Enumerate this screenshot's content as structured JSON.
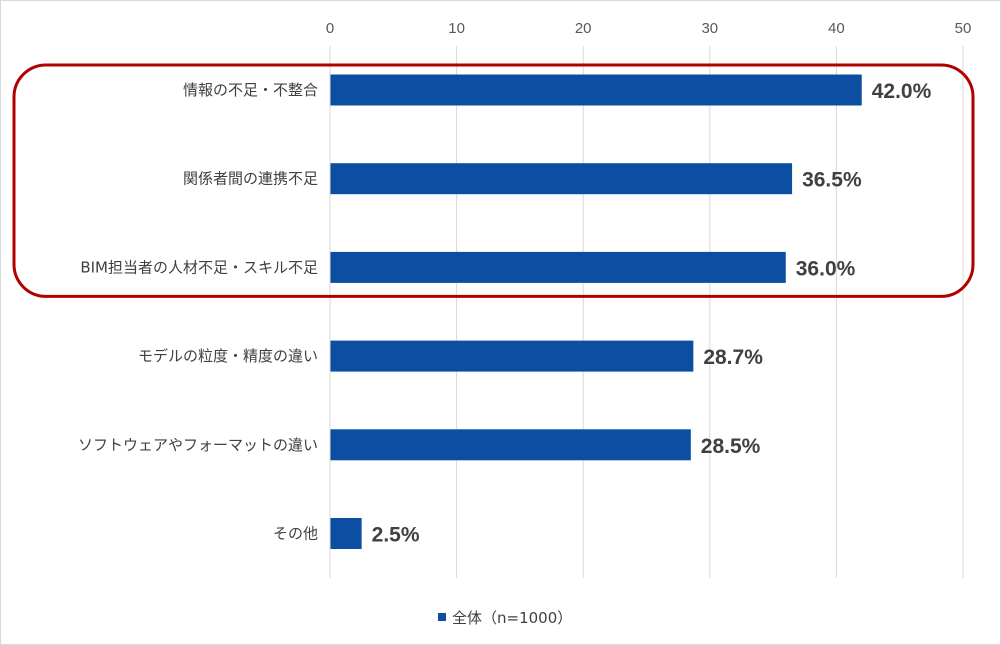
{
  "chart_data": {
    "type": "bar",
    "orientation": "horizontal",
    "title": "",
    "xlabel": "",
    "ylabel": "",
    "xlim": [
      0,
      50
    ],
    "x_ticks": [
      "0",
      "10",
      "20",
      "30",
      "40",
      "50"
    ],
    "x_tick_values": [
      0,
      10,
      20,
      30,
      40,
      50
    ],
    "x_axis_position": "top",
    "grid": true,
    "categories": [
      "情報の不足・不整合",
      "関係者間の連携不足",
      "BIM担当者の人材不足・スキル不足",
      "モデルの粒度・精度の違い",
      "ソフトウェアやフォーマットの違い",
      "その他"
    ],
    "series": [
      {
        "name": "全体（n=1000）",
        "values": [
          42.0,
          36.5,
          36.0,
          28.7,
          28.5,
          2.5
        ],
        "labels": [
          "42.0%",
          "36.5%",
          "36.0%",
          "28.7%",
          "28.5%",
          "2.5%"
        ],
        "color": "#0b4ea2"
      }
    ],
    "highlight": {
      "description": "rounded red box around the top three categories",
      "categories": [
        0,
        1,
        2
      ],
      "color": "#b00000"
    },
    "legend": {
      "position": "bottom-center"
    }
  }
}
